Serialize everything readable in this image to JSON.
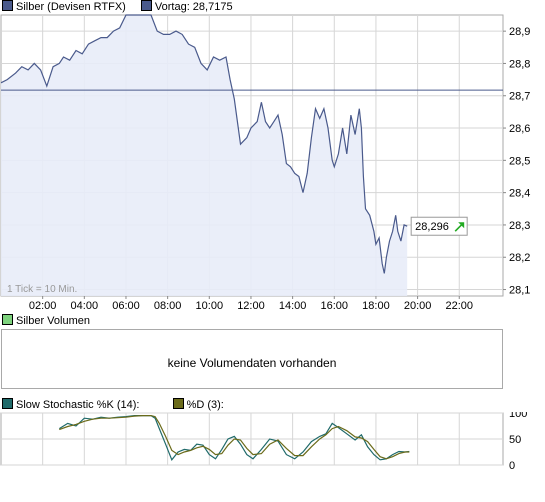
{
  "main_legend": {
    "series_name": "Silber (Devisen RTFX)",
    "series_color": "#4a5a8c",
    "prev_label": "Vortag: 28,7175",
    "prev_color": "#4a5a8c"
  },
  "tick_note": "1 Tick = 10 Min.",
  "last_value": {
    "text": "28,296",
    "arrow": "up-right-arrow-icon",
    "arrow_color": "#22aa22"
  },
  "volume": {
    "legend_label": "Silber Volumen",
    "legend_color": "#7dd27d",
    "no_data_text": "keine Volumendaten vorhanden"
  },
  "stoch_legend": {
    "k_label": "Slow Stochastic %K (14):",
    "k_color": "#1f6a6a",
    "d_label": "%D (3):",
    "d_color": "#6b6b1a"
  },
  "chart_data": [
    {
      "type": "area",
      "x_unit": "hours",
      "x_ticks": [
        {
          "x": 2,
          "label": "02:00"
        },
        {
          "x": 4,
          "label": "04:00"
        },
        {
          "x": 6,
          "label": "06:00"
        },
        {
          "x": 8,
          "label": "08:00"
        },
        {
          "x": 10,
          "label": "10:00"
        },
        {
          "x": 12,
          "label": "12:00"
        },
        {
          "x": 14,
          "label": "14:00"
        },
        {
          "x": 16,
          "label": "16:00"
        },
        {
          "x": 18,
          "label": "18:00"
        },
        {
          "x": 20,
          "label": "20:00"
        },
        {
          "x": 22,
          "label": "22:00"
        }
      ],
      "xlim": [
        0,
        24.1
      ],
      "y_ticks": [
        {
          "y": 28.1,
          "label": "28,1"
        },
        {
          "y": 28.2,
          "label": "28,2"
        },
        {
          "y": 28.3,
          "label": "28,3"
        },
        {
          "y": 28.4,
          "label": "28,4"
        },
        {
          "y": 28.5,
          "label": "28,5"
        },
        {
          "y": 28.6,
          "label": "28,6"
        },
        {
          "y": 28.7,
          "label": "28,7"
        },
        {
          "y": 28.8,
          "label": "28,8"
        },
        {
          "y": 28.9,
          "label": "28,9"
        }
      ],
      "ylim": [
        28.08,
        28.95
      ],
      "grid": true,
      "reference_line": 28.7175,
      "series": [
        {
          "name": "Silber (Devisen RTFX)",
          "points": [
            [
              0.0,
              28.74
            ],
            [
              0.3,
              28.75
            ],
            [
              0.7,
              28.77
            ],
            [
              1.0,
              28.79
            ],
            [
              1.3,
              28.78
            ],
            [
              1.6,
              28.8
            ],
            [
              1.9,
              28.78
            ],
            [
              2.2,
              28.73
            ],
            [
              2.5,
              28.79
            ],
            [
              2.8,
              28.8
            ],
            [
              3.0,
              28.82
            ],
            [
              3.3,
              28.81
            ],
            [
              3.6,
              28.84
            ],
            [
              3.9,
              28.83
            ],
            [
              4.2,
              28.86
            ],
            [
              4.5,
              28.87
            ],
            [
              4.8,
              28.88
            ],
            [
              5.1,
              28.88
            ],
            [
              5.4,
              28.9
            ],
            [
              5.7,
              28.91
            ],
            [
              6.0,
              28.95
            ],
            [
              6.3,
              28.95
            ],
            [
              6.6,
              28.95
            ],
            [
              6.9,
              28.95
            ],
            [
              7.2,
              28.95
            ],
            [
              7.5,
              28.9
            ],
            [
              7.8,
              28.89
            ],
            [
              8.1,
              28.89
            ],
            [
              8.4,
              28.9
            ],
            [
              8.7,
              28.89
            ],
            [
              9.0,
              28.86
            ],
            [
              9.3,
              28.85
            ],
            [
              9.6,
              28.8
            ],
            [
              9.9,
              28.78
            ],
            [
              10.2,
              28.82
            ],
            [
              10.5,
              28.81
            ],
            [
              10.8,
              28.82
            ],
            [
              11.0,
              28.75
            ],
            [
              11.2,
              28.69
            ],
            [
              11.5,
              28.55
            ],
            [
              11.8,
              28.57
            ],
            [
              12.0,
              28.6
            ],
            [
              12.3,
              28.62
            ],
            [
              12.5,
              28.68
            ],
            [
              12.7,
              28.62
            ],
            [
              12.9,
              28.6
            ],
            [
              13.1,
              28.62
            ],
            [
              13.3,
              28.64
            ],
            [
              13.5,
              28.58
            ],
            [
              13.7,
              28.49
            ],
            [
              13.9,
              28.48
            ],
            [
              14.1,
              28.46
            ],
            [
              14.3,
              28.45
            ],
            [
              14.5,
              28.4
            ],
            [
              14.7,
              28.46
            ],
            [
              14.9,
              28.57
            ],
            [
              15.1,
              28.66
            ],
            [
              15.3,
              28.63
            ],
            [
              15.5,
              28.66
            ],
            [
              15.7,
              28.6
            ],
            [
              15.9,
              28.5
            ],
            [
              16.0,
              28.48
            ],
            [
              16.2,
              28.52
            ],
            [
              16.4,
              28.6
            ],
            [
              16.6,
              28.52
            ],
            [
              16.8,
              28.64
            ],
            [
              17.0,
              28.58
            ],
            [
              17.2,
              28.66
            ],
            [
              17.3,
              28.6
            ],
            [
              17.4,
              28.45
            ],
            [
              17.5,
              28.35
            ],
            [
              17.7,
              28.33
            ],
            [
              17.9,
              28.28
            ],
            [
              18.0,
              28.24
            ],
            [
              18.15,
              28.26
            ],
            [
              18.3,
              28.18
            ],
            [
              18.4,
              28.15
            ],
            [
              18.5,
              28.2
            ],
            [
              18.65,
              28.25
            ],
            [
              18.8,
              28.28
            ],
            [
              18.95,
              28.33
            ],
            [
              19.05,
              28.28
            ],
            [
              19.2,
              28.25
            ],
            [
              19.35,
              28.3
            ],
            [
              19.5,
              28.296
            ]
          ]
        }
      ]
    },
    {
      "type": "line",
      "x_unit": "hours",
      "xlim": [
        0,
        24.1
      ],
      "y_ticks": [
        {
          "y": 0,
          "label": "0"
        },
        {
          "y": 50,
          "label": "50"
        },
        {
          "y": 100,
          "label": "100"
        }
      ],
      "ylim": [
        0,
        100
      ],
      "grid": true,
      "series": [
        {
          "name": "%K",
          "points": [
            [
              2.8,
              70
            ],
            [
              3.2,
              80
            ],
            [
              3.6,
              75
            ],
            [
              4.0,
              90
            ],
            [
              4.4,
              88
            ],
            [
              4.8,
              92
            ],
            [
              5.2,
              90
            ],
            [
              5.6,
              92
            ],
            [
              6.0,
              93
            ],
            [
              6.4,
              95
            ],
            [
              6.8,
              95
            ],
            [
              7.2,
              95
            ],
            [
              7.4,
              90
            ],
            [
              7.6,
              70
            ],
            [
              7.9,
              40
            ],
            [
              8.2,
              10
            ],
            [
              8.5,
              25
            ],
            [
              8.8,
              30
            ],
            [
              9.1,
              28
            ],
            [
              9.4,
              40
            ],
            [
              9.7,
              38
            ],
            [
              10.0,
              20
            ],
            [
              10.3,
              12
            ],
            [
              10.6,
              30
            ],
            [
              10.9,
              50
            ],
            [
              11.2,
              55
            ],
            [
              11.5,
              40
            ],
            [
              11.8,
              20
            ],
            [
              12.1,
              12
            ],
            [
              12.5,
              30
            ],
            [
              12.9,
              50
            ],
            [
              13.3,
              46
            ],
            [
              13.7,
              20
            ],
            [
              14.1,
              12
            ],
            [
              14.5,
              25
            ],
            [
              14.9,
              45
            ],
            [
              15.3,
              55
            ],
            [
              15.6,
              60
            ],
            [
              15.9,
              80
            ],
            [
              16.2,
              72
            ],
            [
              16.6,
              60
            ],
            [
              17.0,
              48
            ],
            [
              17.3,
              58
            ],
            [
              17.6,
              35
            ],
            [
              17.9,
              20
            ],
            [
              18.2,
              10
            ],
            [
              18.5,
              12
            ],
            [
              18.8,
              20
            ],
            [
              19.1,
              26
            ],
            [
              19.4,
              25
            ],
            [
              19.6,
              26
            ]
          ]
        },
        {
          "name": "%D",
          "points": [
            [
              2.8,
              68
            ],
            [
              3.2,
              74
            ],
            [
              3.6,
              78
            ],
            [
              4.0,
              84
            ],
            [
              4.4,
              88
            ],
            [
              4.8,
              90
            ],
            [
              5.2,
              90
            ],
            [
              5.6,
              91
            ],
            [
              6.0,
              92
            ],
            [
              6.4,
              94
            ],
            [
              6.8,
              95
            ],
            [
              7.2,
              95
            ],
            [
              7.4,
              93
            ],
            [
              7.6,
              80
            ],
            [
              7.9,
              55
            ],
            [
              8.2,
              28
            ],
            [
              8.5,
              20
            ],
            [
              8.8,
              25
            ],
            [
              9.1,
              28
            ],
            [
              9.4,
              33
            ],
            [
              9.7,
              36
            ],
            [
              10.0,
              30
            ],
            [
              10.3,
              20
            ],
            [
              10.6,
              22
            ],
            [
              10.9,
              38
            ],
            [
              11.2,
              50
            ],
            [
              11.5,
              48
            ],
            [
              11.8,
              32
            ],
            [
              12.1,
              20
            ],
            [
              12.5,
              22
            ],
            [
              12.9,
              40
            ],
            [
              13.3,
              48
            ],
            [
              13.7,
              32
            ],
            [
              14.1,
              18
            ],
            [
              14.5,
              18
            ],
            [
              14.9,
              35
            ],
            [
              15.3,
              50
            ],
            [
              15.6,
              58
            ],
            [
              15.9,
              70
            ],
            [
              16.2,
              74
            ],
            [
              16.6,
              66
            ],
            [
              17.0,
              54
            ],
            [
              17.3,
              52
            ],
            [
              17.6,
              45
            ],
            [
              17.9,
              30
            ],
            [
              18.2,
              16
            ],
            [
              18.5,
              12
            ],
            [
              18.8,
              16
            ],
            [
              19.1,
              22
            ],
            [
              19.4,
              25
            ],
            [
              19.6,
              25
            ]
          ]
        }
      ]
    }
  ]
}
